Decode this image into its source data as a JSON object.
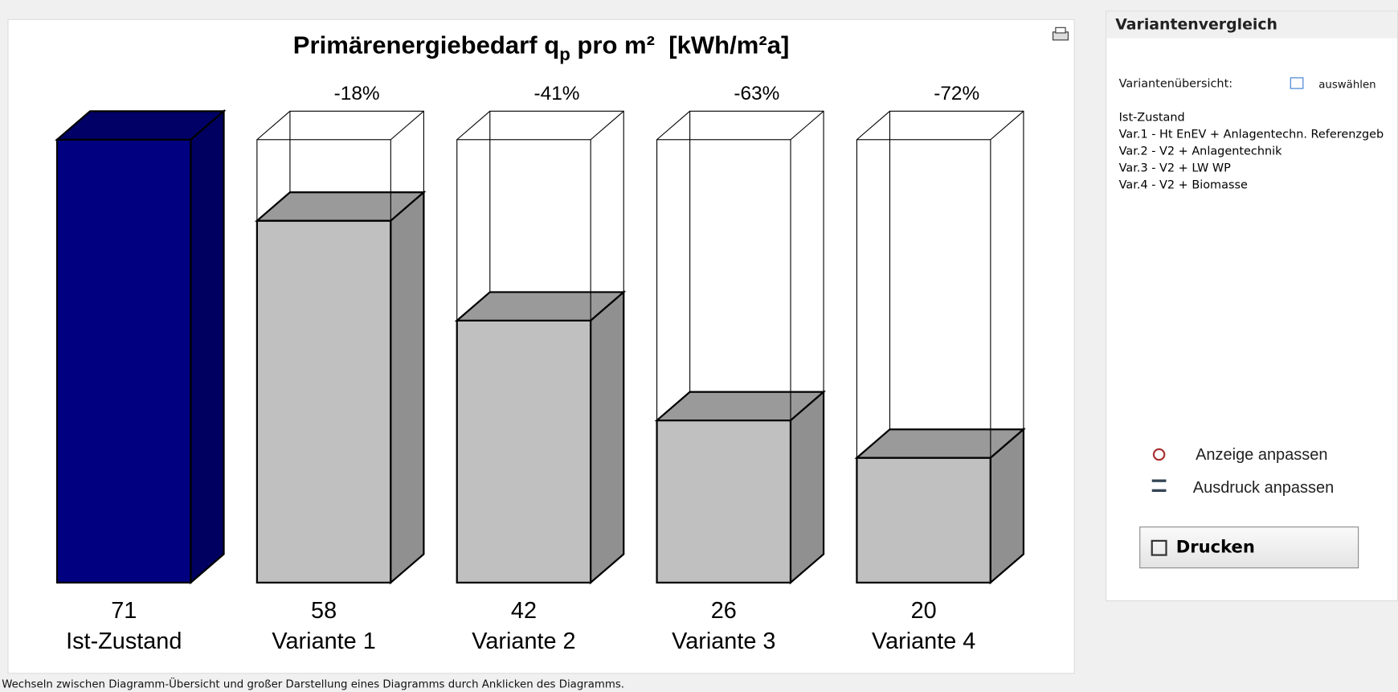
{
  "chart_data": {
    "type": "bar3d",
    "title": {
      "main": "Primärenergiebedarf q",
      "sub": "p",
      "rest": " pro m²  [kWh/m²a]"
    },
    "categories": [
      "Ist-Zustand",
      "Variante 1",
      "Variante 2",
      "Variante 3",
      "Variante 4"
    ],
    "values": [
      71,
      58,
      42,
      26,
      20
    ],
    "change_labels": [
      null,
      "-18%",
      "-41%",
      "-63%",
      "-72%"
    ],
    "colors": [
      "#000080",
      "#c0c0c0",
      "#c0c0c0",
      "#c0c0c0",
      "#c0c0c0"
    ]
  },
  "panel": {
    "title": "Variantenvergleich",
    "overview_label": "Variantenübersicht:",
    "select_button": "auswählen",
    "variants": [
      "Ist-Zustand",
      "Var.1 - Ht EnEV + Anlagentechn. Referenzgeb",
      "Var.2 - V2 + Anlagentechnik",
      "Var.3 - V2 + LW WP",
      "Var.4 - V2 + Biomasse"
    ],
    "adjust_display": "Anzeige anpassen",
    "adjust_print": "Ausdruck anpassen",
    "print_button": "Drucken"
  },
  "status": "Wechseln zwischen Diagramm-Übersicht und großer Darstellung eines Diagramms durch Anklicken des Diagramms."
}
